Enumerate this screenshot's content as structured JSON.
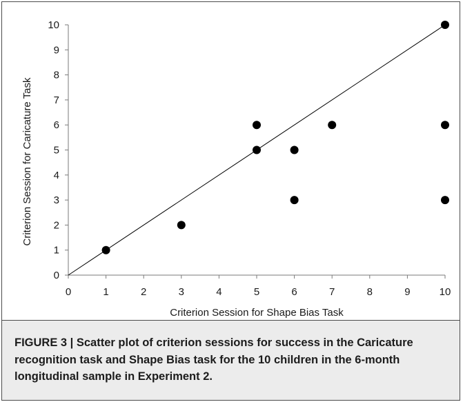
{
  "chart_data": {
    "type": "scatter",
    "xlabel": "Criterion Session for Shape Bias Task",
    "ylabel": "Criterion Session for Caricature Task",
    "xlim": [
      0,
      10
    ],
    "ylim": [
      0,
      10
    ],
    "xticks": [
      0,
      1,
      2,
      3,
      4,
      5,
      6,
      7,
      8,
      9,
      10
    ],
    "yticks": [
      0,
      1,
      2,
      3,
      4,
      5,
      6,
      7,
      8,
      9,
      10
    ],
    "grid": false,
    "legend": "none",
    "points": [
      {
        "x": 1,
        "y": 1
      },
      {
        "x": 3,
        "y": 2
      },
      {
        "x": 5,
        "y": 6
      },
      {
        "x": 5,
        "y": 5
      },
      {
        "x": 6,
        "y": 5
      },
      {
        "x": 6,
        "y": 3
      },
      {
        "x": 7,
        "y": 6
      },
      {
        "x": 10,
        "y": 10
      },
      {
        "x": 10,
        "y": 6
      },
      {
        "x": 10,
        "y": 3
      }
    ],
    "reference_line": {
      "from": [
        0,
        0
      ],
      "to": [
        10,
        10
      ]
    },
    "marker_color": "#000000",
    "line_color": "#000000"
  },
  "caption": "FIGURE 3 | Scatter plot of criterion sessions for success in the Caricature recognition task and Shape Bias task for the 10 children in the 6-month longitudinal sample in Experiment 2."
}
